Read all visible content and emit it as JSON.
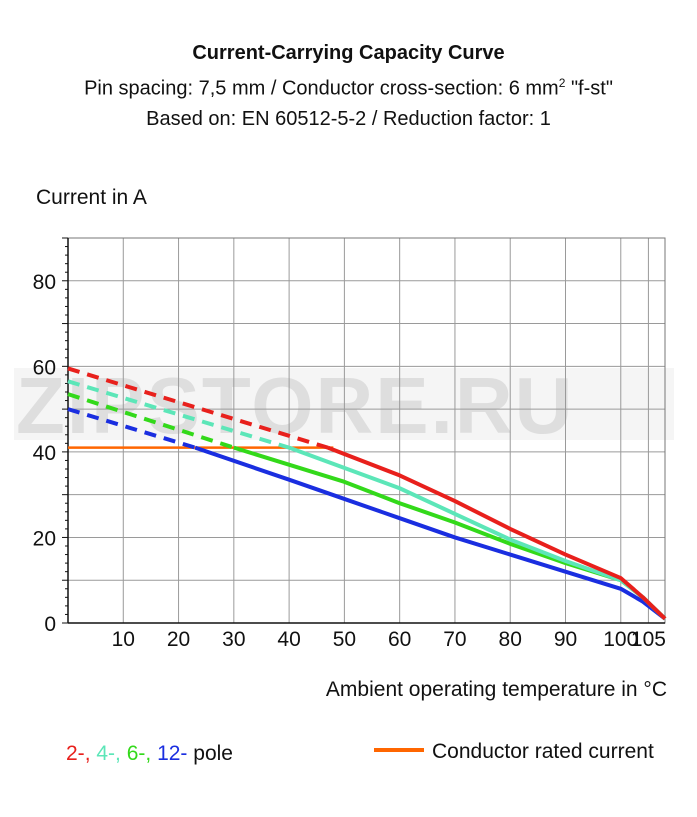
{
  "header": {
    "title": "Current-Carrying Capacity Curve",
    "subtitle_prefix": "Pin spacing: 7,5 mm / Conductor cross-section: 6 mm",
    "subtitle_sup": "2",
    "subtitle_suffix": " \"f-st\"",
    "subtitle2": "Based on: EN 60512-5-2 / Reduction factor: 1"
  },
  "watermark": "ZIPSTORE.RU",
  "legend": {
    "pole_items": [
      {
        "text": "2-",
        "color": "#e8201c"
      },
      {
        "text": ", ",
        "color": "#e8201c"
      },
      {
        "text": "4-",
        "color": "#5ce6b8"
      },
      {
        "text": ", ",
        "color": "#5ce6b8"
      },
      {
        "text": "6-",
        "color": "#33d91a"
      },
      {
        "text": ", ",
        "color": "#33d91a"
      },
      {
        "text": "12-",
        "color": "#1a2ee0"
      },
      {
        "text": " pole",
        "color": "#111111"
      }
    ],
    "rated_label": "Conductor rated current",
    "rated_color": "#ff6600"
  },
  "chart_data": {
    "type": "line",
    "xlabel": "Ambient operating temperature in °C",
    "ylabel": "Current in A",
    "xlim": [
      0,
      108
    ],
    "ylim": [
      0,
      90
    ],
    "xticks": [
      10,
      20,
      30,
      40,
      50,
      60,
      70,
      80,
      90,
      100,
      105
    ],
    "yticks": [
      0,
      20,
      40,
      60,
      80
    ],
    "grid": true,
    "series": [
      {
        "name": "2-",
        "color": "#e8201c",
        "dashed": [
          [
            0,
            59.5
          ],
          [
            47,
            41
          ]
        ],
        "solid": [
          [
            47,
            41
          ],
          [
            60,
            34.5
          ],
          [
            70,
            28.5
          ],
          [
            80,
            22
          ],
          [
            90,
            16
          ],
          [
            100,
            10.5
          ],
          [
            104,
            6
          ],
          [
            108,
            1
          ]
        ]
      },
      {
        "name": "4-",
        "color": "#5ce6b8",
        "dashed": [
          [
            0,
            56.5
          ],
          [
            40,
            41
          ]
        ],
        "solid": [
          [
            40,
            41
          ],
          [
            60,
            31.5
          ],
          [
            70,
            25.5
          ],
          [
            80,
            19.5
          ],
          [
            90,
            14.5
          ],
          [
            100,
            10
          ],
          [
            104,
            6
          ],
          [
            108,
            1
          ]
        ]
      },
      {
        "name": "6-",
        "color": "#33d91a",
        "dashed": [
          [
            0,
            53.5
          ],
          [
            30,
            41
          ]
        ],
        "solid": [
          [
            30,
            41
          ],
          [
            50,
            33
          ],
          [
            60,
            28
          ],
          [
            70,
            23.5
          ],
          [
            80,
            18.5
          ],
          [
            90,
            14
          ],
          [
            100,
            10
          ],
          [
            104,
            6
          ],
          [
            108,
            1
          ]
        ]
      },
      {
        "name": "12-",
        "color": "#1a2ee0",
        "dashed": [
          [
            0,
            50
          ],
          [
            23,
            41
          ]
        ],
        "solid": [
          [
            23,
            41
          ],
          [
            40,
            33.5
          ],
          [
            50,
            29
          ],
          [
            60,
            24.5
          ],
          [
            70,
            20
          ],
          [
            80,
            16
          ],
          [
            90,
            12
          ],
          [
            100,
            8
          ],
          [
            104,
            5
          ],
          [
            108,
            1
          ]
        ]
      }
    ],
    "rated_current": {
      "name": "Conductor rated current",
      "color": "#ff6600",
      "value": 41,
      "x_range": [
        0,
        48
      ]
    }
  }
}
